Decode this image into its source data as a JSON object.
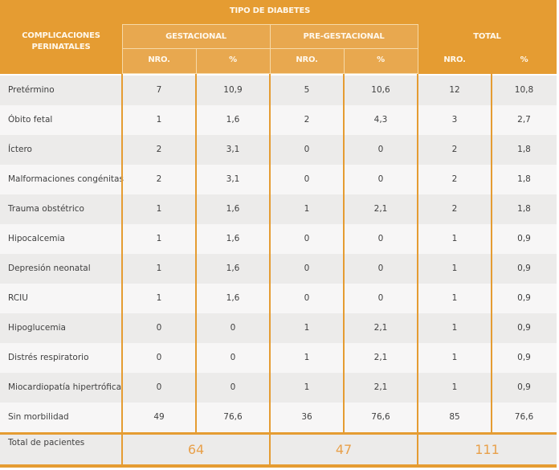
{
  "header": {
    "group_title": "TIPO DE DIABETES",
    "row_header": "COMPLICACIONES PERINATALES",
    "groups": [
      "GESTACIONAL",
      "PRE-GESTACIONAL",
      "TOTAL"
    ],
    "sub_nro": "NRO.",
    "sub_pct": "%"
  },
  "rows": [
    {
      "label": "Pretérmino",
      "g_n": "7",
      "g_p": "10,9",
      "p_n": "5",
      "p_p": "10,6",
      "t_n": "12",
      "t_p": "10,8"
    },
    {
      "label": "Óbito fetal",
      "g_n": "1",
      "g_p": "1,6",
      "p_n": "2",
      "p_p": "4,3",
      "t_n": "3",
      "t_p": "2,7"
    },
    {
      "label": "Íctero",
      "g_n": "2",
      "g_p": "3,1",
      "p_n": "0",
      "p_p": "0",
      "t_n": "2",
      "t_p": "1,8"
    },
    {
      "label": "Malformaciones congénitas",
      "g_n": "2",
      "g_p": "3,1",
      "p_n": "0",
      "p_p": "0",
      "t_n": "2",
      "t_p": "1,8"
    },
    {
      "label": "Trauma obstétrico",
      "g_n": "1",
      "g_p": "1,6",
      "p_n": "1",
      "p_p": "2,1",
      "t_n": "2",
      "t_p": "1,8"
    },
    {
      "label": "Hipocalcemia",
      "g_n": "1",
      "g_p": "1,6",
      "p_n": "0",
      "p_p": "0",
      "t_n": "1",
      "t_p": "0,9"
    },
    {
      "label": "Depresión neonatal",
      "g_n": "1",
      "g_p": "1,6",
      "p_n": "0",
      "p_p": "0",
      "t_n": "1",
      "t_p": "0,9"
    },
    {
      "label": "RCIU",
      "g_n": "1",
      "g_p": "1,6",
      "p_n": "0",
      "p_p": "0",
      "t_n": "1",
      "t_p": "0,9"
    },
    {
      "label": "Hipoglucemia",
      "g_n": "0",
      "g_p": "0",
      "p_n": "1",
      "p_p": "2,1",
      "t_n": "1",
      "t_p": "0,9"
    },
    {
      "label": "Distrés respiratorio",
      "g_n": "0",
      "g_p": "0",
      "p_n": "1",
      "p_p": "2,1",
      "t_n": "1",
      "t_p": "0,9"
    },
    {
      "label": "Miocardiopatía hipertrófica",
      "g_n": "0",
      "g_p": "0",
      "p_n": "1",
      "p_p": "2,1",
      "t_n": "1",
      "t_p": "0,9"
    },
    {
      "label": "Sin morbilidad",
      "g_n": "49",
      "g_p": "76,6",
      "p_n": "36",
      "p_p": "76,6",
      "t_n": "85",
      "t_p": "76,6"
    }
  ],
  "total": {
    "label": "Total de pacientes",
    "gestacional": "64",
    "pregestacional": "47",
    "total": "111"
  },
  "colors": {
    "accent": "#e59c32",
    "sub_header": "#e8a84f",
    "total_number": "#e8a04a"
  }
}
